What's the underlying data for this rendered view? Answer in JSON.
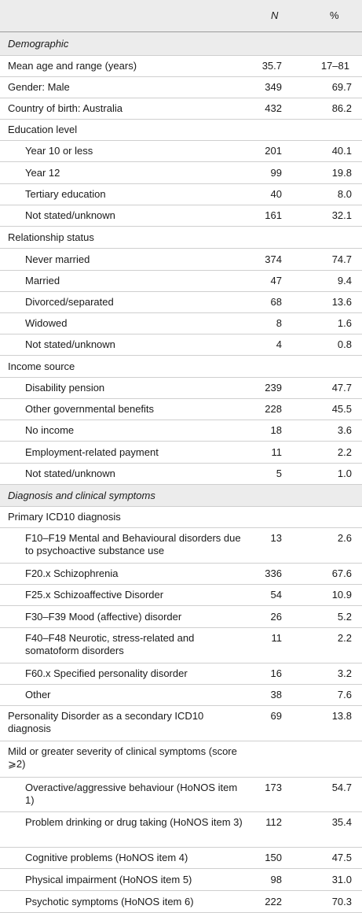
{
  "header": {
    "n": "N",
    "pct": "%"
  },
  "rows": [
    {
      "label": "Demographic",
      "n": "",
      "p": "",
      "kind": "section",
      "h": 30
    },
    {
      "label": "Mean age and range (years)",
      "n": "35.7",
      "p": "17–81",
      "kind": "top",
      "h": 27
    },
    {
      "label": "Gender: Male",
      "n": "349",
      "p": "69.7",
      "kind": "top",
      "h": 27
    },
    {
      "label": "Country of birth: Australia",
      "n": "432",
      "p": "86.2",
      "kind": "top",
      "h": 27
    },
    {
      "label": "Education level",
      "n": "",
      "p": "",
      "kind": "top",
      "h": 27
    },
    {
      "label": "Year 10 or less",
      "n": "201",
      "p": "40.1",
      "kind": "sub",
      "h": 27
    },
    {
      "label": "Year 12",
      "n": "99",
      "p": "19.8",
      "kind": "sub",
      "h": 28
    },
    {
      "label": "Tertiary education",
      "n": "40",
      "p": "8.0",
      "kind": "sub",
      "h": 27
    },
    {
      "label": "Not stated/unknown",
      "n": "161",
      "p": "32.1",
      "kind": "sub",
      "h": 27
    },
    {
      "label": "Relationship status",
      "n": "",
      "p": "",
      "kind": "top",
      "h": 28
    },
    {
      "label": "Never married",
      "n": "374",
      "p": "74.7",
      "kind": "sub",
      "h": 28
    },
    {
      "label": "Married",
      "n": "47",
      "p": "9.4",
      "kind": "sub",
      "h": 27
    },
    {
      "label": "Divorced/separated",
      "n": "68",
      "p": "13.6",
      "kind": "sub",
      "h": 27
    },
    {
      "label": "Widowed",
      "n": "8",
      "p": "1.6",
      "kind": "sub",
      "h": 27
    },
    {
      "label": "Not stated/unknown",
      "n": "4",
      "p": "0.8",
      "kind": "sub",
      "h": 27
    },
    {
      "label": "Income source",
      "n": "",
      "p": "",
      "kind": "top",
      "h": 28
    },
    {
      "label": "Disability pension",
      "n": "239",
      "p": "47.7",
      "kind": "sub",
      "h": 27
    },
    {
      "label": "Other governmental benefits",
      "n": "228",
      "p": "45.5",
      "kind": "sub",
      "h": 27
    },
    {
      "label": "No income",
      "n": "18",
      "p": "3.6",
      "kind": "sub",
      "h": 27
    },
    {
      "label": "Employment-related payment",
      "n": "11",
      "p": "2.2",
      "kind": "sub",
      "h": 28
    },
    {
      "label": "Not stated/unknown",
      "n": "5",
      "p": "1.0",
      "kind": "sub",
      "h": 27
    },
    {
      "label": "Diagnosis and clinical symptoms",
      "n": "",
      "p": "",
      "kind": "section",
      "h": 28
    },
    {
      "label": "Primary ICD10 diagnosis",
      "n": "",
      "p": "",
      "kind": "top",
      "h": 27
    },
    {
      "label": "F10–F19 Mental and Behavioural disorders due to psychoactive substance use",
      "n": "13",
      "p": "2.6",
      "kind": "sub",
      "h": 45
    },
    {
      "label": "F20.x Schizophrenia",
      "n": "336",
      "p": "67.6",
      "kind": "sub",
      "h": 27
    },
    {
      "label": "F25.x Schizoaffective Disorder",
      "n": "54",
      "p": "10.9",
      "kind": "sub",
      "h": 27
    },
    {
      "label": "F30–F39 Mood (affective) disorder",
      "n": "26",
      "p": "5.2",
      "kind": "sub",
      "h": 28
    },
    {
      "label": "F40–F48 Neurotic, stress-related and somatoform disorders",
      "n": "11",
      "p": "2.2",
      "kind": "sub",
      "h": 45
    },
    {
      "label": "F60.x Specified personality disorder",
      "n": "16",
      "p": "3.2",
      "kind": "sub",
      "h": 27
    },
    {
      "label": "Other",
      "n": "38",
      "p": "7.6",
      "kind": "sub",
      "h": 27
    },
    {
      "label": "Personality Disorder as a secondary ICD10 diagnosis",
      "n": "69",
      "p": "13.8",
      "kind": "top",
      "h": 45
    },
    {
      "label": "Mild or greater severity of clinical symptoms (score ⩾2)",
      "n": "",
      "p": "",
      "kind": "top",
      "h": 46
    },
    {
      "label": "Overactive/aggressive behaviour (HoNOS item 1)",
      "n": "173",
      "p": "54.7",
      "kind": "sub",
      "h": 44
    },
    {
      "label": "Problem drinking or drug taking (HoNOS item 3)",
      "n": "112",
      "p": "35.4",
      "kind": "sub",
      "h": 45
    },
    {
      "label": "Cognitive problems (HoNOS item 4)",
      "n": "150",
      "p": "47.5",
      "kind": "sub",
      "h": 27
    },
    {
      "label": "Physical impairment (HoNOS item 5)",
      "n": "98",
      "p": "31.0",
      "kind": "sub",
      "h": 28
    },
    {
      "label": "Psychotic symptoms (HoNOS item 6)",
      "n": "222",
      "p": "70.3",
      "kind": "sub",
      "h": 28
    }
  ]
}
